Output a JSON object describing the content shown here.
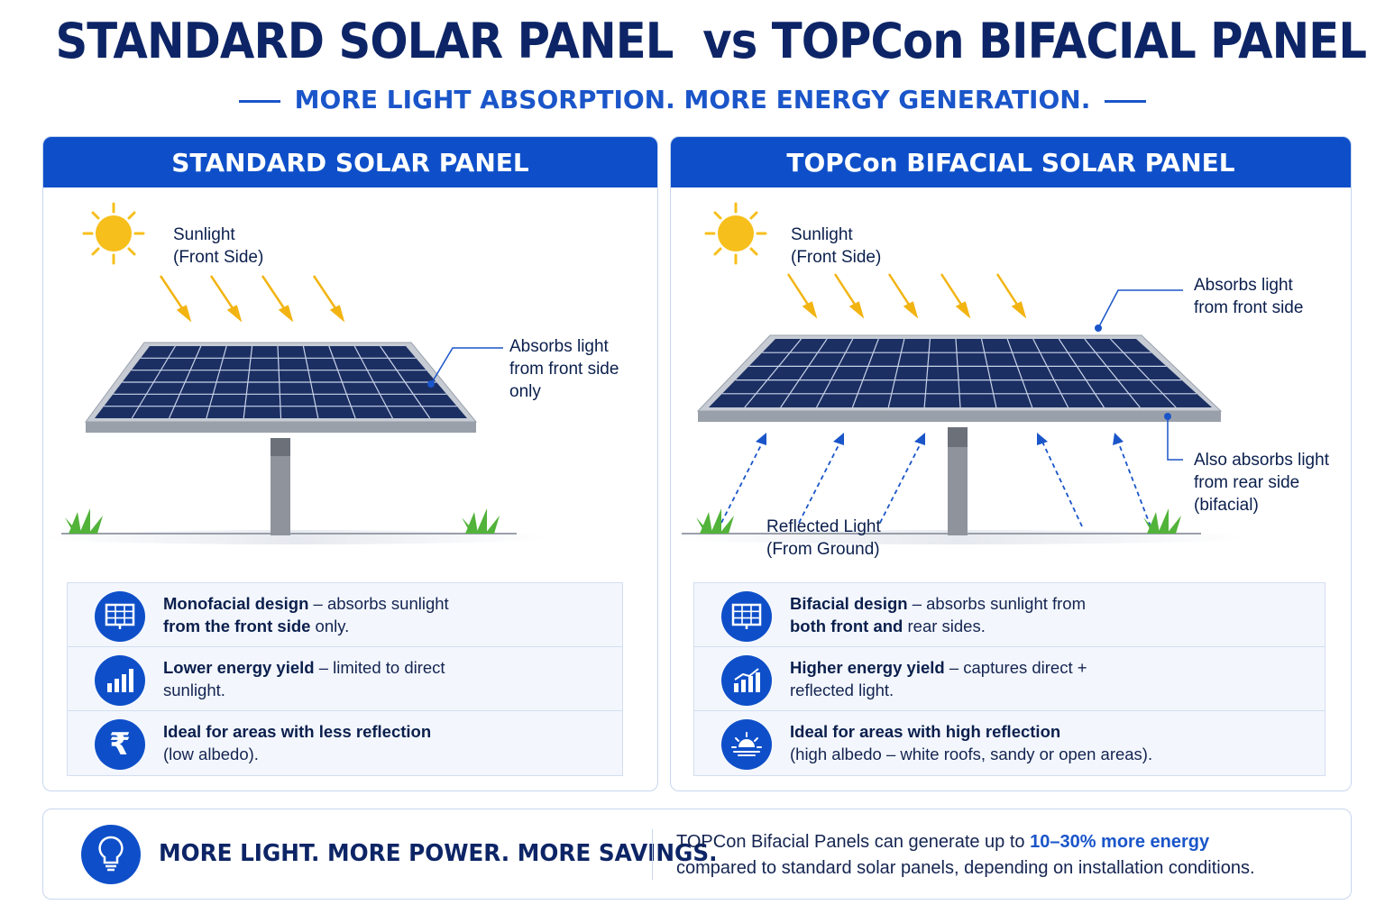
{
  "title": "STANDARD SOLAR PANEL  vs TOPCon BIFACIAL PANEL",
  "subtitle": "MORE LIGHT ABSORPTION. MORE ENERGY GENERATION.",
  "left": {
    "header": "STANDARD SOLAR PANEL",
    "sun_label_1": "Sunlight",
    "sun_label_2": "(Front Side)",
    "absorb_1": "Absorbs light",
    "absorb_2": "from front side",
    "absorb_3": "only",
    "features": [
      {
        "icon": "solar-panel-icon",
        "bold": "Monofacial design",
        "text": " – absorbs sunlight",
        "line2_bold": "from the front side",
        "line2": " only."
      },
      {
        "icon": "bar-chart-icon",
        "bold": "Lower energy yield",
        "text": " – limited to direct",
        "line2_bold": "",
        "line2": "sunlight."
      },
      {
        "icon": "rupee-icon",
        "bold": "Ideal for areas with less reflection",
        "text": "",
        "line2_bold": "",
        "line2": "(low albedo)."
      }
    ]
  },
  "right": {
    "header": "TOPCon BIFACIAL SOLAR PANEL",
    "sun_label_1": "Sunlight",
    "sun_label_2": "(Front Side)",
    "absorb_front_1": "Absorbs light",
    "absorb_front_2": "from front side",
    "absorb_rear_1": "Also absorbs light",
    "absorb_rear_2": "from rear side",
    "absorb_rear_3": "(bifacial)",
    "reflected_1": "Reflected Light",
    "reflected_2": "(From Ground)",
    "features": [
      {
        "icon": "solar-panel-icon",
        "bold": "Bifacial design",
        "text": " – absorbs sunlight from",
        "line2_bold": "both front and",
        "line2": " rear sides."
      },
      {
        "icon": "growth-chart-icon",
        "bold": "Higher energy yield",
        "text": " – captures direct +",
        "line2_bold": "",
        "line2": "reflected light."
      },
      {
        "icon": "sun-reflection-icon",
        "bold": "Ideal for areas with high reflection",
        "text": "",
        "line2_bold": "",
        "line2": "(high albedo – white roofs, sandy or open areas)."
      }
    ]
  },
  "footer": {
    "slogan": "MORE LIGHT. MORE POWER. MORE SAVINGS.",
    "note_1": "TOPCon Bifacial Panels can generate up to ",
    "note_highlight": "10–30% more energy",
    "note_2": "compared to standard solar panels, depending on installation conditions."
  },
  "colors": {
    "accent": "#0e4fc9",
    "title": "#0d2566",
    "sun": "#f7bf1b",
    "panel": "#1b2f63",
    "grass": "#52b33a"
  }
}
